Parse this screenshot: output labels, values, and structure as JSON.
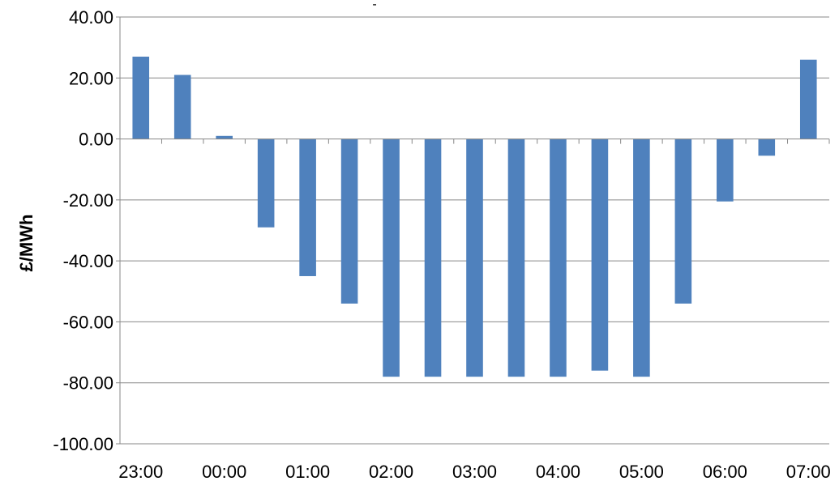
{
  "chart_data": {
    "type": "bar",
    "title": "-",
    "xlabel": "",
    "ylabel": "£/MWh",
    "ylim": [
      -100,
      40
    ],
    "y_ticks": [
      "40.00",
      "20.00",
      "0.00",
      "-20.00",
      "-40.00",
      "-60.00",
      "-80.00",
      "-100.00"
    ],
    "y_tick_values": [
      40,
      20,
      0,
      -20,
      -40,
      -60,
      -80,
      -100
    ],
    "x_tick_labels": [
      "23:00",
      "00:00",
      "01:00",
      "02:00",
      "03:00",
      "04:00",
      "05:00",
      "06:00",
      "07:00"
    ],
    "categories": [
      "23:00",
      "23:30",
      "00:00",
      "00:30",
      "01:00",
      "01:30",
      "02:00",
      "02:30",
      "03:00",
      "03:30",
      "04:00",
      "04:30",
      "05:00",
      "05:30",
      "06:00",
      "06:30",
      "07:00"
    ],
    "values": [
      27,
      21,
      1,
      -29,
      -45,
      -54,
      -78,
      -78,
      -78,
      -78,
      -78,
      -76,
      -78,
      -54,
      -20.5,
      -5.5,
      26
    ],
    "grid": true,
    "legend": "none",
    "colors": {
      "bar": "#4F81BD",
      "grid": "#878787",
      "axis": "#878787"
    }
  }
}
